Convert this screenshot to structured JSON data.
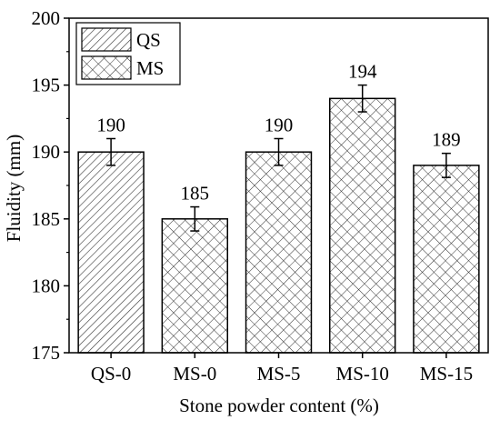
{
  "chart_data": {
    "type": "bar",
    "title": "",
    "xlabel": "Stone powder content (%)",
    "ylabel": "Fluidity (mm)",
    "ylim": [
      175,
      200
    ],
    "yticks": [
      175,
      180,
      185,
      190,
      195,
      200
    ],
    "categories": [
      "QS-0",
      "MS-0",
      "MS-5",
      "MS-10",
      "MS-15"
    ],
    "values": [
      190,
      185,
      190,
      194,
      189
    ],
    "errors": [
      1,
      0.9,
      1,
      1,
      0.9
    ],
    "value_labels": [
      "190",
      "185",
      "190",
      "194",
      "189"
    ],
    "groups": [
      "QS",
      "MS",
      "MS",
      "MS",
      "MS"
    ],
    "legend": {
      "placement": "top-left",
      "entries": [
        {
          "key": "QS",
          "label": "QS",
          "pattern": "diagonal-hatch"
        },
        {
          "key": "MS",
          "label": "MS",
          "pattern": "cross-hatch"
        }
      ]
    },
    "colors": {
      "stroke": "#000000",
      "fill": "#ffffff",
      "hatch": "#333333"
    },
    "grid": false
  }
}
